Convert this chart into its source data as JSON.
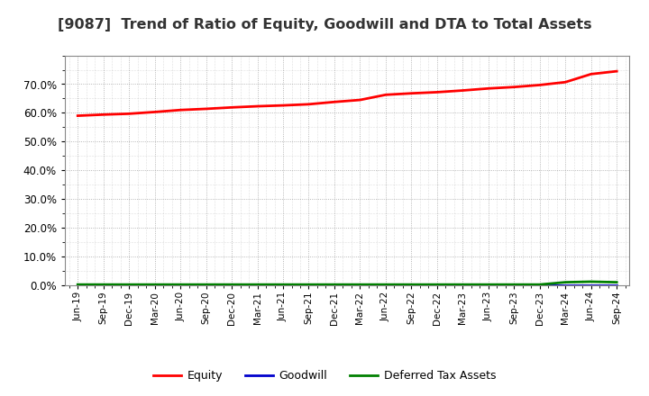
{
  "title": "[9087]  Trend of Ratio of Equity, Goodwill and DTA to Total Assets",
  "title_fontsize": 11.5,
  "title_color": "#333333",
  "background_color": "#ffffff",
  "plot_background_color": "#ffffff",
  "grid_color": "#999999",
  "x_labels": [
    "Jun-19",
    "Sep-19",
    "Dec-19",
    "Mar-20",
    "Jun-20",
    "Sep-20",
    "Dec-20",
    "Mar-21",
    "Jun-21",
    "Sep-21",
    "Dec-21",
    "Mar-22",
    "Jun-22",
    "Sep-22",
    "Dec-22",
    "Mar-23",
    "Jun-23",
    "Sep-23",
    "Dec-23",
    "Mar-24",
    "Jun-24",
    "Sep-24"
  ],
  "equity": [
    0.59,
    0.594,
    0.597,
    0.603,
    0.61,
    0.614,
    0.619,
    0.623,
    0.626,
    0.63,
    0.638,
    0.645,
    0.663,
    0.668,
    0.672,
    0.678,
    0.685,
    0.69,
    0.697,
    0.707,
    0.735,
    0.745
  ],
  "goodwill": [
    0.0,
    0.0,
    0.0,
    0.0,
    0.0,
    0.0,
    0.0,
    0.0,
    0.0,
    0.0,
    0.0,
    0.0,
    0.0,
    0.0,
    0.0,
    0.0,
    0.0,
    0.0,
    0.0,
    0.0,
    0.0,
    0.0
  ],
  "dta": [
    0.002,
    0.002,
    0.002,
    0.002,
    0.002,
    0.002,
    0.002,
    0.002,
    0.002,
    0.002,
    0.002,
    0.002,
    0.002,
    0.002,
    0.002,
    0.002,
    0.002,
    0.002,
    0.002,
    0.01,
    0.012,
    0.01
  ],
  "equity_color": "#ff0000",
  "goodwill_color": "#0000cc",
  "dta_color": "#008000",
  "line_width": 2.0,
  "ylim": [
    0.0,
    0.8
  ],
  "yticks": [
    0.0,
    0.1,
    0.2,
    0.3,
    0.4,
    0.5,
    0.6,
    0.7
  ],
  "legend_labels": [
    "Equity",
    "Goodwill",
    "Deferred Tax Assets"
  ],
  "legend_colors": [
    "#ff0000",
    "#0000cc",
    "#008000"
  ]
}
